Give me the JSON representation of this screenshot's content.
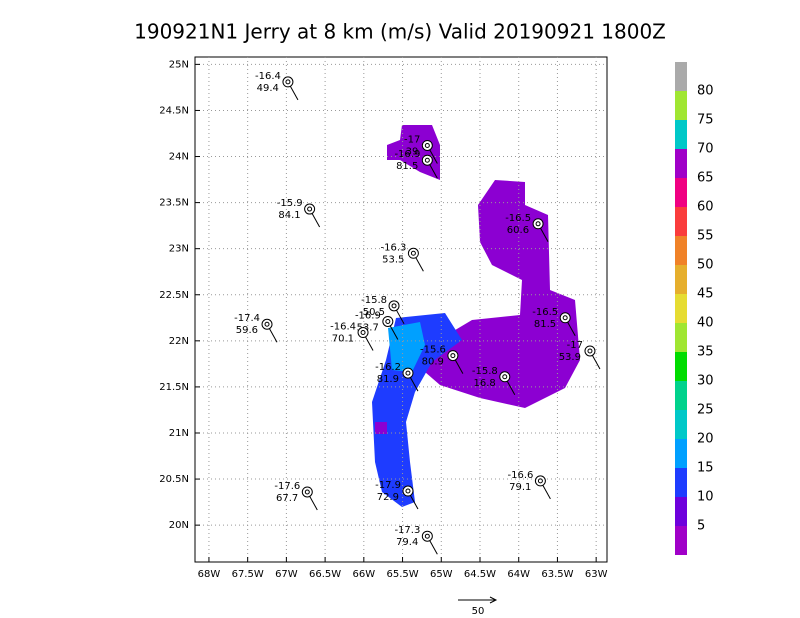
{
  "chart_data": {
    "type": "station-map",
    "title": "190921N1 Jerry at 8 km (m/s) Valid 20190921 1800Z",
    "xlim": [
      -68.18,
      -62.86
    ],
    "ylim": [
      19.6,
      25.08
    ],
    "xticks": [
      {
        "value": -68,
        "label": "68W"
      },
      {
        "value": -67.5,
        "label": "67.5W"
      },
      {
        "value": -67,
        "label": "67W"
      },
      {
        "value": -66.5,
        "label": "66.5W"
      },
      {
        "value": -66,
        "label": "66W"
      },
      {
        "value": -65.5,
        "label": "65.5W"
      },
      {
        "value": -65,
        "label": "65W"
      },
      {
        "value": -64.5,
        "label": "64.5W"
      },
      {
        "value": -64,
        "label": "64W"
      },
      {
        "value": -63.5,
        "label": "63.5W"
      },
      {
        "value": -63,
        "label": "63W"
      }
    ],
    "yticks": [
      {
        "value": 20,
        "label": "20N"
      },
      {
        "value": 20.5,
        "label": "20.5N"
      },
      {
        "value": 21,
        "label": "21N"
      },
      {
        "value": 21.5,
        "label": "21.5N"
      },
      {
        "value": 22,
        "label": "22N"
      },
      {
        "value": 22.5,
        "label": "22.5N"
      },
      {
        "value": 23,
        "label": "23N"
      },
      {
        "value": 23.5,
        "label": "23.5N"
      },
      {
        "value": 24,
        "label": "24N"
      },
      {
        "value": 24.5,
        "label": "24.5N"
      },
      {
        "value": 25,
        "label": "25N"
      }
    ],
    "grid": true,
    "stations": [
      {
        "lon": -66.98,
        "lat": 24.81,
        "top": -16.4,
        "bottom": 49.4
      },
      {
        "lon": -65.18,
        "lat": 24.12,
        "top": -17.0,
        "bottom": 39.0
      },
      {
        "lon": -65.18,
        "lat": 23.96,
        "top": -16.9,
        "bottom": 81.5
      },
      {
        "lon": -66.7,
        "lat": 23.43,
        "top": -15.9,
        "bottom": 84.1
      },
      {
        "lon": -63.75,
        "lat": 23.27,
        "top": -16.5,
        "bottom": 60.6
      },
      {
        "lon": -65.36,
        "lat": 22.95,
        "top": -16.3,
        "bottom": 53.5
      },
      {
        "lon": -65.61,
        "lat": 22.38,
        "top": -15.8,
        "bottom": 50.5
      },
      {
        "lon": -65.69,
        "lat": 22.21,
        "top": -16.9,
        "bottom": 53.7
      },
      {
        "lon": -66.01,
        "lat": 22.09,
        "top": -16.4,
        "bottom": 70.1
      },
      {
        "lon": -67.25,
        "lat": 22.18,
        "top": -17.4,
        "bottom": 59.6
      },
      {
        "lon": -63.4,
        "lat": 22.25,
        "top": -16.5,
        "bottom": 81.5
      },
      {
        "lon": -63.08,
        "lat": 21.89,
        "top": -17.0,
        "bottom": 53.9
      },
      {
        "lon": -64.85,
        "lat": 21.84,
        "top": -15.6,
        "bottom": 80.9
      },
      {
        "lon": -65.43,
        "lat": 21.65,
        "top": -16.2,
        "bottom": 81.9
      },
      {
        "lon": -64.18,
        "lat": 21.61,
        "top": -15.8,
        "bottom": 16.8
      },
      {
        "lon": -63.72,
        "lat": 20.48,
        "top": -16.6,
        "bottom": 79.1
      },
      {
        "lon": -66.73,
        "lat": 20.36,
        "top": -17.6,
        "bottom": 67.7
      },
      {
        "lon": -65.43,
        "lat": 20.37,
        "top": -17.9,
        "bottom": 72.9
      },
      {
        "lon": -65.18,
        "lat": 19.88,
        "top": -17.3,
        "bottom": 79.4
      }
    ],
    "colorbar": {
      "lim": [
        0,
        85
      ],
      "ticks": [
        5,
        10,
        15,
        20,
        25,
        30,
        35,
        40,
        45,
        50,
        55,
        60,
        65,
        70,
        75,
        80
      ],
      "colors": [
        "#a000c8",
        "#6e00dc",
        "#1e3cff",
        "#00a0ff",
        "#00c8c8",
        "#00d28c",
        "#00dc00",
        "#a0e632",
        "#e6dc32",
        "#e6af2d",
        "#f08228",
        "#fa3c3c",
        "#f00082",
        "#a000c8",
        "#00c8c8",
        "#a0e632",
        "#aaaaaa"
      ]
    },
    "reference_vector": {
      "label": 50
    }
  }
}
